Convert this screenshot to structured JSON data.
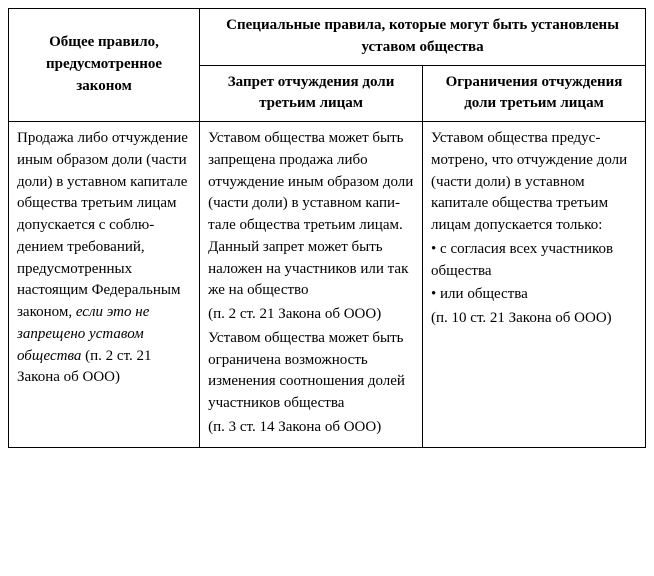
{
  "table": {
    "header": {
      "left": "Общее правило, предусмотренное законом",
      "right_group": "Специальные правила, которые могут быть установлены уставом общества",
      "right_sub1": "Запрет отчуждения доли третьим лицам",
      "right_sub2": "Ограничения отчуждения доли третьим лицам"
    },
    "row": {
      "c1_p1": "Продажа либо от­чуждение иным образом доли (части доли) в уставном капитале общества третьим лицам до­пускается с соблю­дением требований, предусмотренных настоящим Феде­ральным законом, ",
      "c1_italic": "если это не запреще­но уставом общества",
      "c1_p2": " (п. 2 ст. 21 Закона об ООО)",
      "c2_p1": "Уставом общества может быть запрещена продажа либо отчуждение иным образом доли (части доли) в уставном капи­тале общества третьим лицам. Данный запрет может быть наложен на участников или так же на общество",
      "c2_p2": "(п. 2 ст. 21 Закона об ООО)",
      "c2_p3": "Уставом общества мо­жет быть ограничена возможность изменения соотношения долей участников общества",
      "c2_p4": "(п. 3 ст. 14 Закона об ООО)",
      "c3_p1": "Уставом общества предус­мотрено, что отчуждение доли (части доли) в устав­ном капитале общества третьим лицам допускает­ся только:",
      "c3_b1": "• с согласия всех участни­ков общества",
      "c3_b2": "• или общества",
      "c3_p2": "(п. 10 ст. 21 Закона об ООО)"
    }
  }
}
